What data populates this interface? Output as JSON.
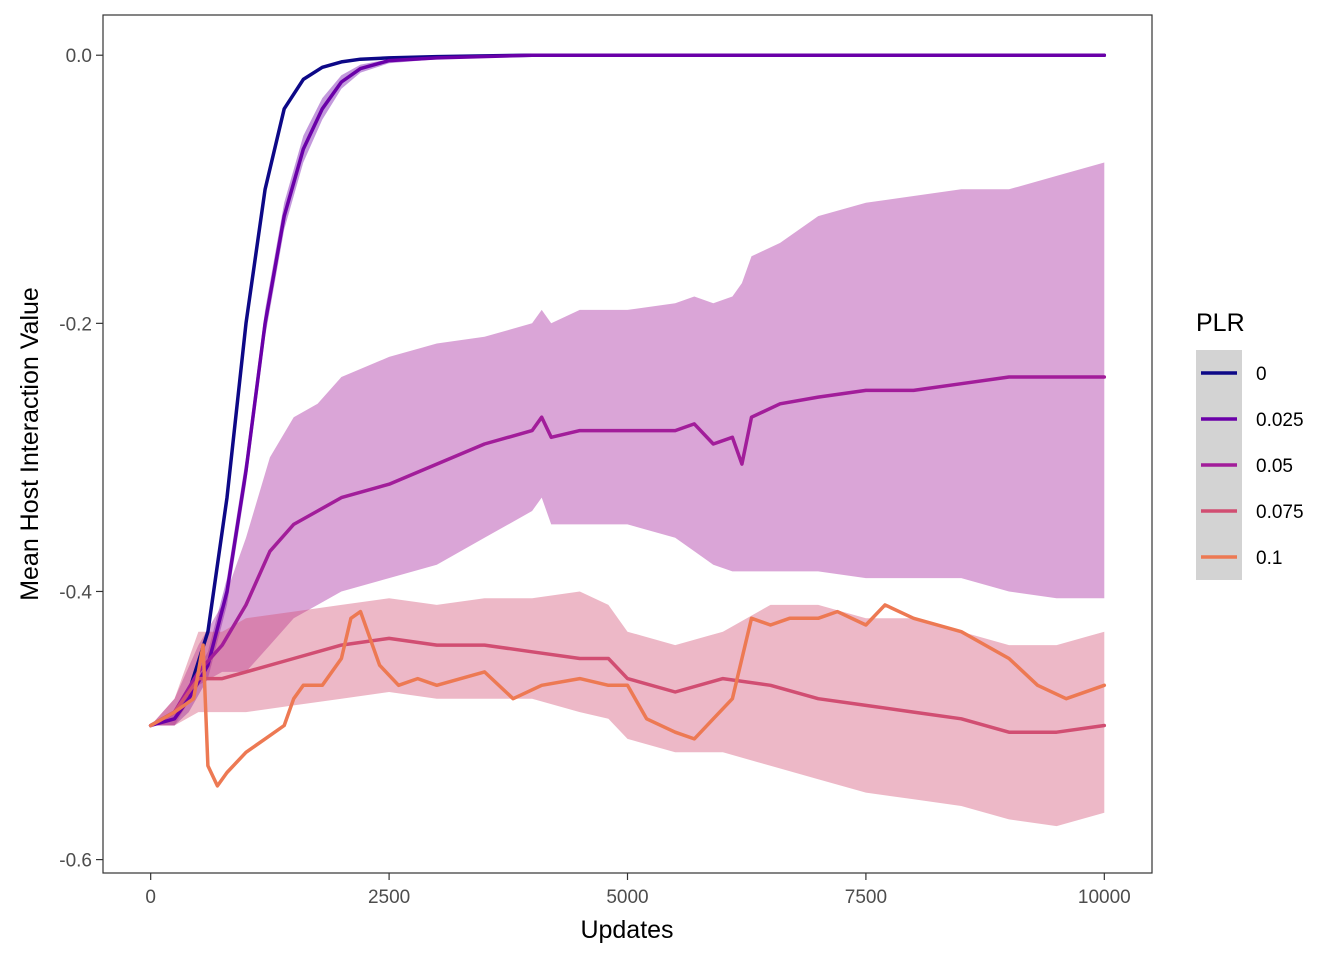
{
  "chart_data": {
    "type": "line",
    "title": "",
    "xlabel": "Updates",
    "ylabel": "Mean Host Interaction Value",
    "xlim": [
      -500,
      10500
    ],
    "ylim": [
      -0.61,
      0.03
    ],
    "x_ticks": [
      0,
      2500,
      5000,
      7500,
      10000
    ],
    "x_tick_labels": [
      "0",
      "2500",
      "5000",
      "7500",
      "10000"
    ],
    "y_ticks": [
      0.0,
      -0.2,
      -0.4,
      -0.6
    ],
    "y_tick_labels": [
      "0.0",
      "-0.2",
      "-0.4",
      "-0.6"
    ],
    "legend": {
      "title": "PLR",
      "position": "right"
    },
    "grid": false,
    "series": [
      {
        "name": "0",
        "color": "#0D0887",
        "x": [
          0,
          250,
          400,
          600,
          800,
          1000,
          1200,
          1400,
          1600,
          1800,
          2000,
          2200,
          2500,
          3000,
          4000,
          5000,
          6000,
          7000,
          8000,
          9000,
          10000
        ],
        "y": [
          -0.5,
          -0.49,
          -0.475,
          -0.43,
          -0.33,
          -0.2,
          -0.1,
          -0.04,
          -0.018,
          -0.009,
          -0.005,
          -0.003,
          -0.002,
          -0.001,
          0.0,
          0.0,
          0.0,
          0.0,
          0.0,
          0.0,
          0.0
        ],
        "band_upper": [],
        "band_lower": []
      },
      {
        "name": "0.025",
        "color": "#6A00A8",
        "x": [
          0,
          250,
          400,
          600,
          800,
          1000,
          1200,
          1400,
          1600,
          1800,
          2000,
          2200,
          2500,
          3000,
          4000,
          5000,
          6000,
          7000,
          8000,
          9000,
          10000
        ],
        "y": [
          -0.5,
          -0.495,
          -0.48,
          -0.455,
          -0.4,
          -0.31,
          -0.2,
          -0.12,
          -0.07,
          -0.04,
          -0.02,
          -0.01,
          -0.004,
          -0.002,
          0.0,
          0.0,
          0.0,
          0.0,
          0.0,
          0.0,
          0.0
        ],
        "band_upper": [
          -0.5,
          -0.49,
          -0.47,
          -0.445,
          -0.39,
          -0.3,
          -0.19,
          -0.11,
          -0.06,
          -0.032,
          -0.015,
          -0.007,
          -0.003,
          -0.001,
          0.0,
          0.0,
          0.0,
          0.0,
          0.0,
          0.0,
          0.0
        ],
        "band_lower": [
          -0.5,
          -0.5,
          -0.49,
          -0.465,
          -0.41,
          -0.32,
          -0.21,
          -0.13,
          -0.08,
          -0.048,
          -0.025,
          -0.013,
          -0.006,
          -0.003,
          0.0,
          0.0,
          0.0,
          0.0,
          0.0,
          0.0,
          0.0
        ]
      },
      {
        "name": "0.05",
        "color": "#A21D9A",
        "x": [
          0,
          250,
          500,
          750,
          1000,
          1250,
          1500,
          1750,
          2000,
          2500,
          3000,
          3500,
          4000,
          4100,
          4200,
          4500,
          5000,
          5500,
          5700,
          5900,
          6100,
          6200,
          6300,
          6600,
          7000,
          7500,
          8000,
          8500,
          9000,
          9500,
          10000
        ],
        "y": [
          -0.5,
          -0.49,
          -0.46,
          -0.44,
          -0.41,
          -0.37,
          -0.35,
          -0.34,
          -0.33,
          -0.32,
          -0.305,
          -0.29,
          -0.28,
          -0.27,
          -0.285,
          -0.28,
          -0.28,
          -0.28,
          -0.275,
          -0.29,
          -0.285,
          -0.305,
          -0.27,
          -0.26,
          -0.255,
          -0.25,
          -0.25,
          -0.245,
          -0.24,
          -0.24,
          -0.24
        ],
        "band_upper": [
          -0.5,
          -0.48,
          -0.44,
          -0.41,
          -0.36,
          -0.3,
          -0.27,
          -0.26,
          -0.24,
          -0.225,
          -0.215,
          -0.21,
          -0.2,
          -0.19,
          -0.2,
          -0.19,
          -0.19,
          -0.185,
          -0.18,
          -0.185,
          -0.18,
          -0.17,
          -0.15,
          -0.14,
          -0.12,
          -0.11,
          -0.105,
          -0.1,
          -0.1,
          -0.09,
          -0.08
        ],
        "band_lower": [
          -0.5,
          -0.5,
          -0.47,
          -0.46,
          -0.46,
          -0.44,
          -0.42,
          -0.41,
          -0.4,
          -0.39,
          -0.38,
          -0.36,
          -0.34,
          -0.33,
          -0.35,
          -0.35,
          -0.35,
          -0.36,
          -0.37,
          -0.38,
          -0.385,
          -0.385,
          -0.385,
          -0.385,
          -0.385,
          -0.39,
          -0.39,
          -0.39,
          -0.4,
          -0.405,
          -0.405
        ]
      },
      {
        "name": "0.075",
        "color": "#D14E72",
        "x": [
          0,
          250,
          500,
          750,
          1000,
          1500,
          2000,
          2500,
          3000,
          3500,
          4000,
          4500,
          4800,
          5000,
          5500,
          6000,
          6500,
          7000,
          7500,
          8000,
          8500,
          9000,
          9500,
          10000
        ],
        "y": [
          -0.5,
          -0.49,
          -0.465,
          -0.465,
          -0.46,
          -0.45,
          -0.44,
          -0.435,
          -0.44,
          -0.44,
          -0.445,
          -0.45,
          -0.45,
          -0.465,
          -0.475,
          -0.465,
          -0.47,
          -0.48,
          -0.485,
          -0.49,
          -0.495,
          -0.505,
          -0.505,
          -0.5
        ],
        "band_upper": [
          -0.5,
          -0.48,
          -0.43,
          -0.43,
          -0.42,
          -0.415,
          -0.41,
          -0.405,
          -0.41,
          -0.405,
          -0.405,
          -0.4,
          -0.41,
          -0.43,
          -0.44,
          -0.43,
          -0.41,
          -0.41,
          -0.42,
          -0.42,
          -0.43,
          -0.44,
          -0.44,
          -0.43
        ],
        "band_lower": [
          -0.5,
          -0.5,
          -0.49,
          -0.49,
          -0.49,
          -0.485,
          -0.48,
          -0.475,
          -0.48,
          -0.48,
          -0.48,
          -0.49,
          -0.495,
          -0.51,
          -0.52,
          -0.52,
          -0.53,
          -0.54,
          -0.55,
          -0.555,
          -0.56,
          -0.57,
          -0.575,
          -0.565
        ]
      },
      {
        "name": "0.1",
        "color": "#ED7953",
        "x": [
          0,
          250,
          450,
          550,
          600,
          700,
          800,
          1000,
          1200,
          1400,
          1500,
          1600,
          1800,
          2000,
          2100,
          2200,
          2400,
          2600,
          2800,
          3000,
          3500,
          3800,
          4100,
          4500,
          4800,
          5000,
          5200,
          5500,
          5700,
          5900,
          6100,
          6300,
          6500,
          6700,
          7000,
          7200,
          7500,
          7700,
          8000,
          8500,
          9000,
          9300,
          9600,
          10000
        ],
        "y": [
          -0.5,
          -0.49,
          -0.48,
          -0.44,
          -0.53,
          -0.545,
          -0.535,
          -0.52,
          -0.51,
          -0.5,
          -0.48,
          -0.47,
          -0.47,
          -0.45,
          -0.42,
          -0.415,
          -0.455,
          -0.47,
          -0.465,
          -0.47,
          -0.46,
          -0.48,
          -0.47,
          -0.465,
          -0.47,
          -0.47,
          -0.495,
          -0.505,
          -0.51,
          -0.495,
          -0.48,
          -0.42,
          -0.425,
          -0.42,
          -0.42,
          -0.415,
          -0.425,
          -0.41,
          -0.42,
          -0.43,
          -0.45,
          -0.47,
          -0.48,
          -0.47
        ],
        "band_upper": [],
        "band_lower": []
      }
    ]
  }
}
